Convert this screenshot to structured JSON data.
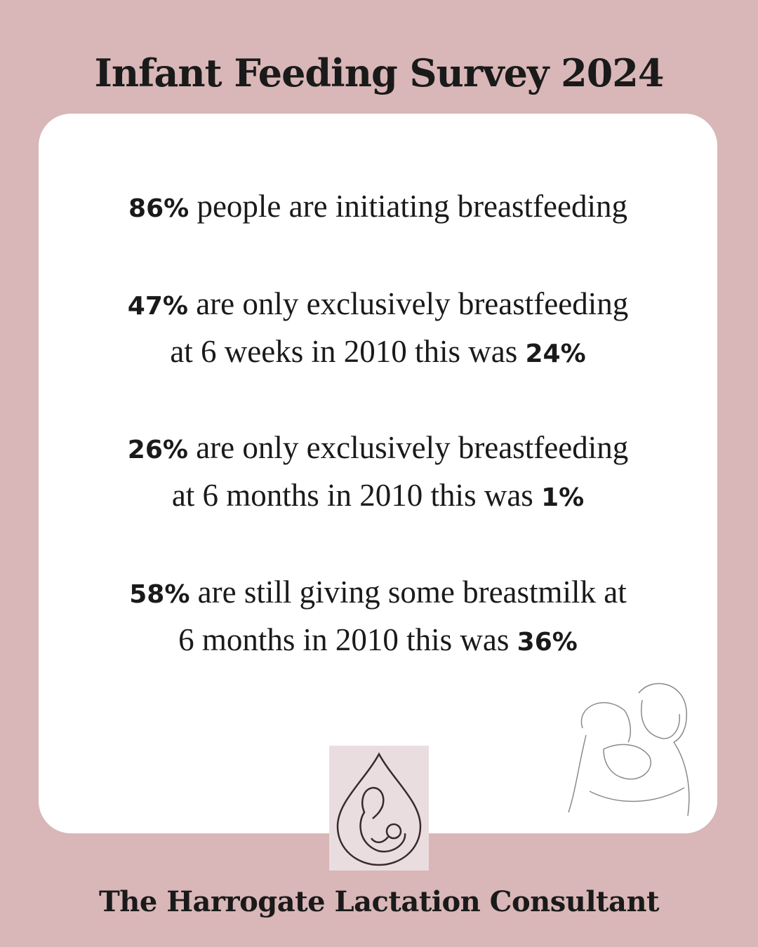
{
  "title": "Infant Feeding Survey 2024",
  "stats": [
    {
      "lines": [
        [
          {
            "text": "86%",
            "bold": true
          },
          {
            "text": "people are initiating breastfeeding",
            "bold": false
          }
        ]
      ]
    },
    {
      "lines": [
        [
          {
            "text": "47%",
            "bold": true
          },
          {
            "text": "are only exclusively breastfeeding",
            "bold": false
          }
        ],
        [
          {
            "text": "at 6 weeks in 2010 this was",
            "bold": false
          },
          {
            "text": "24%",
            "bold": true
          }
        ]
      ]
    },
    {
      "lines": [
        [
          {
            "text": "26%",
            "bold": true
          },
          {
            "text": "are only exclusively breastfeeding",
            "bold": false
          }
        ],
        [
          {
            "text": "at 6 months in 2010 this was",
            "bold": false
          },
          {
            "text": "1%",
            "bold": true
          }
        ]
      ]
    },
    {
      "lines": [
        [
          {
            "text": "58%",
            "bold": true
          },
          {
            "text": "are still giving some breastmilk at",
            "bold": false
          }
        ],
        [
          {
            "text": "6 months in 2010 this was",
            "bold": false
          },
          {
            "text": "36%",
            "bold": true
          }
        ]
      ]
    }
  ],
  "footer": "The Harrogate Lactation Consultant"
}
